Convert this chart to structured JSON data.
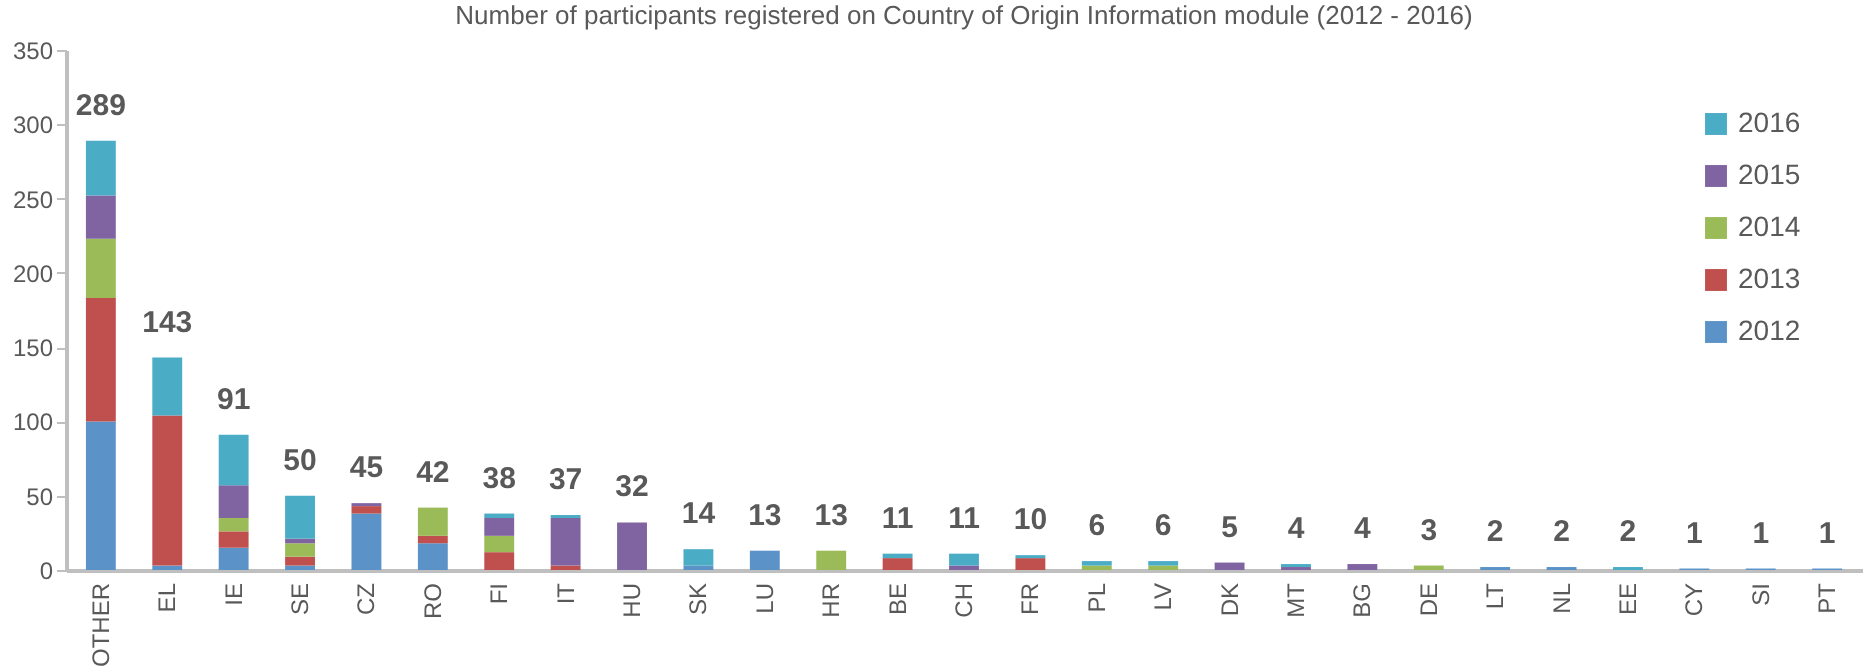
{
  "chart_data": {
    "type": "bar",
    "stacked": true,
    "title": "Number of participants registered on Country of Origin Information module  (2012 - 2016)",
    "categories": [
      "OTHER",
      "EL",
      "IE",
      "SE",
      "CZ",
      "RO",
      "FI",
      "IT",
      "HU",
      "SK",
      "LU",
      "HR",
      "BE",
      "CH",
      "FR",
      "PL",
      "LV",
      "DK",
      "MT",
      "BG",
      "DE",
      "LT",
      "NL",
      "EE",
      "CY",
      "SI",
      "PT"
    ],
    "series": [
      {
        "name": "2012",
        "color": "#5b93c9",
        "values": [
          100,
          3,
          15,
          3,
          38,
          18,
          0,
          0,
          0,
          3,
          13,
          0,
          0,
          0,
          0,
          0,
          0,
          0,
          0,
          0,
          0,
          2,
          2,
          0,
          1,
          1,
          1
        ]
      },
      {
        "name": "2013",
        "color": "#c0504d",
        "values": [
          83,
          101,
          11,
          6,
          5,
          5,
          12,
          3,
          0,
          0,
          0,
          0,
          8,
          0,
          8,
          0,
          0,
          0,
          0,
          0,
          0,
          0,
          0,
          0,
          0,
          0,
          0
        ]
      },
      {
        "name": "2014",
        "color": "#9bbb59",
        "values": [
          40,
          0,
          9,
          9,
          0,
          19,
          11,
          0,
          0,
          0,
          0,
          13,
          0,
          0,
          0,
          3,
          3,
          0,
          0,
          0,
          3,
          0,
          0,
          0,
          0,
          0,
          0
        ]
      },
      {
        "name": "2015",
        "color": "#8064a2",
        "values": [
          29,
          0,
          22,
          3,
          2,
          0,
          12,
          32,
          32,
          0,
          0,
          0,
          0,
          3,
          0,
          0,
          0,
          5,
          2,
          4,
          0,
          0,
          0,
          0,
          0,
          0,
          0
        ]
      },
      {
        "name": "2016",
        "color": "#4bacc6",
        "values": [
          37,
          39,
          34,
          29,
          0,
          0,
          3,
          2,
          0,
          11,
          0,
          0,
          3,
          8,
          2,
          3,
          3,
          0,
          2,
          0,
          0,
          0,
          0,
          2,
          0,
          0,
          0
        ]
      }
    ],
    "totals": [
      "289",
      "143",
      "91",
      "50",
      "45",
      "42",
      "38",
      "37",
      "32",
      "14",
      "13",
      "13",
      "11",
      "11",
      "10",
      "6",
      "6",
      "5",
      "4",
      "4",
      "3",
      "2",
      "2",
      "2",
      "1",
      "1",
      "1"
    ],
    "ylim": [
      0,
      350
    ],
    "yticks": [
      0,
      50,
      100,
      150,
      200,
      250,
      300,
      350
    ],
    "grid": false,
    "legend": "right"
  }
}
